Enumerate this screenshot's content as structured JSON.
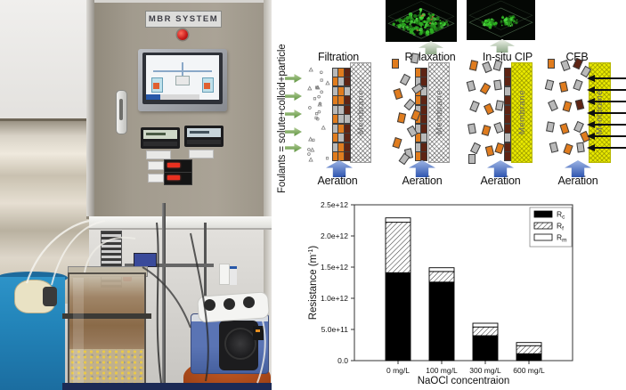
{
  "photo": {
    "cabinet_label": "MBR SYSTEM"
  },
  "foulants_label": "Foulants = solute+colloid+particle",
  "diagram": {
    "stages": [
      {
        "title": "Filtration",
        "membrane_label": "Membrane",
        "aeration_label": "Aeration",
        "membrane_type": "plain"
      },
      {
        "title": "Relaxation",
        "membrane_label": "Membrane",
        "aeration_label": "Aeration",
        "membrane_type": "plain"
      },
      {
        "title": "In-situ CIP",
        "membrane_label": "Membrane",
        "aeration_label": "Aeration",
        "membrane_type": "chemical"
      },
      {
        "title": "CEB",
        "membrane_label": "Membrane",
        "aeration_label": "Aeration",
        "membrane_type": "chemical"
      }
    ]
  },
  "colors": {
    "foulant_orange": "#e07c1e",
    "foulant_gray": "#b9b9b9",
    "foulant_dark": "#5e2414",
    "membrane_chemical": "#e9e900",
    "arrow_green": "#5e9440",
    "arrow_blue": "#3c64bc",
    "clsm_green": "#35c435",
    "chart_black": "#000000"
  },
  "chart_data": {
    "type": "bar",
    "stacked": true,
    "title": "",
    "xlabel": "NaOCl concentraion",
    "ylabel": "Resistance (m-1)",
    "ylabel_parts": {
      "main": "Resistance (m",
      "sup": "-1",
      "close": ")"
    },
    "categories": [
      "0 mg/L",
      "100 mg/L",
      "300 mg/L",
      "600 mg/L"
    ],
    "series": [
      {
        "name": "Rc",
        "label_main": "R",
        "label_sub": "c",
        "fill": "#000000",
        "values": [
          1410000000000.0,
          1260000000000.0,
          400000000000.0,
          110000000000.0
        ]
      },
      {
        "name": "Rf",
        "label_main": "R",
        "label_sub": "f",
        "fill": "hatch",
        "values": [
          810000000000.0,
          170000000000.0,
          140000000000.0,
          130000000000.0
        ]
      },
      {
        "name": "Rm",
        "label_main": "R",
        "label_sub": "m",
        "fill": "#ffffff",
        "values": [
          70000000000.0,
          60000000000.0,
          60000000000.0,
          50000000000.0
        ]
      }
    ],
    "ylim": [
      0,
      2500000000000.0
    ],
    "yticks": [
      {
        "v": 0,
        "label": "0.0"
      },
      {
        "v": 500000000000.0,
        "label": "5.0e+11"
      },
      {
        "v": 1000000000000.0,
        "label": "1.0e+12"
      },
      {
        "v": 1500000000000.0,
        "label": "1.5e+12"
      },
      {
        "v": 2000000000000.0,
        "label": "2.0e+12"
      },
      {
        "v": 2500000000000.0,
        "label": "2.5e+12"
      }
    ],
    "legend_position": "top-right",
    "grid": false
  }
}
